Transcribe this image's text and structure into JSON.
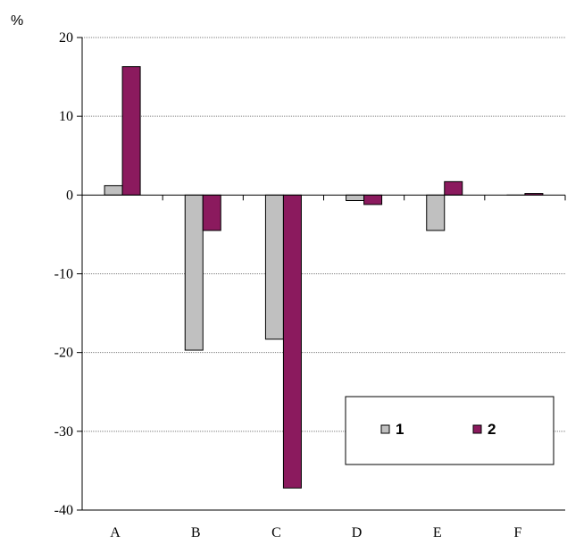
{
  "chart_data": {
    "type": "bar",
    "categories": [
      "A",
      "B",
      "C",
      "D",
      "E",
      "F"
    ],
    "series": [
      {
        "name": "1",
        "values": [
          1.2,
          -19.7,
          -18.3,
          -0.7,
          -4.5,
          0.0
        ],
        "color": "#c0c0c0"
      },
      {
        "name": "2",
        "values": [
          16.3,
          -4.5,
          -37.2,
          -1.2,
          1.7,
          0.2
        ],
        "color": "#8b1a5e"
      }
    ],
    "ylabel": "%",
    "ylim": [
      -40,
      20
    ],
    "yticks": [
      20,
      10,
      0,
      -10,
      -20,
      -30,
      -40
    ],
    "grid": true,
    "legend": "lower-right"
  }
}
